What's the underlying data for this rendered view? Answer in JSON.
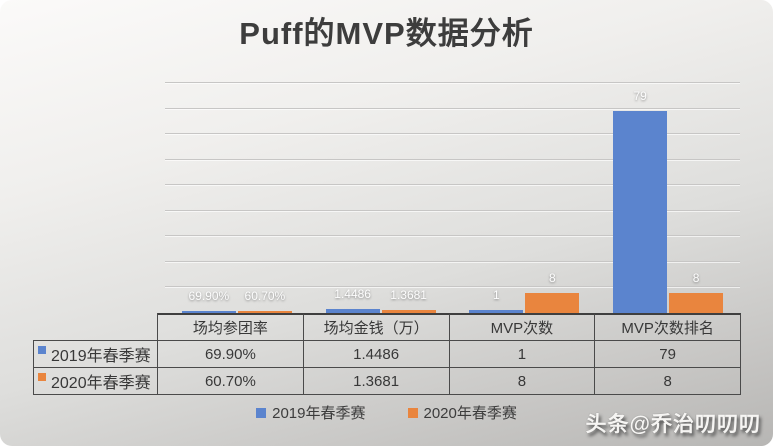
{
  "title": "Puff的MVP数据分析",
  "watermark": "头条@乔治叨叨叨",
  "colors": {
    "series_2019": "#5b84ce",
    "series_2020": "#e9853e",
    "table_border": "#4a4a4a",
    "title_text": "#3d3d3d",
    "background_top": "#fbfaf9",
    "background_bottom": "#b7b6b4"
  },
  "chart_data": {
    "type": "bar",
    "title": "Puff的MVP数据分析",
    "categories": [
      "场均参团率",
      "场均金钱（万）",
      "MVP次数",
      "MVP次数排名"
    ],
    "series": [
      {
        "name": "2019年春季赛",
        "color": "#5b84ce",
        "values": [
          0.699,
          1.4486,
          1,
          79
        ],
        "labels": [
          "69.90%",
          "1.4486",
          "1",
          "79"
        ]
      },
      {
        "name": "2020年春季赛",
        "color": "#e9853e",
        "values": [
          0.607,
          1.3681,
          8,
          8
        ],
        "labels": [
          "60.70%",
          "1.3681",
          "8",
          "8"
        ]
      }
    ],
    "xlabel": "",
    "ylabel": "",
    "ylim": [
      0,
      90
    ],
    "gridline_step": 10,
    "grid": true,
    "legend_position": "bottom",
    "shows_data_table": true
  },
  "table": {
    "headers": [
      "场均参团率",
      "场均金钱（万）",
      "MVP次数",
      "MVP次数排名"
    ],
    "rows": [
      {
        "label": "2019年春季赛",
        "color": "#5b84ce",
        "values": [
          "69.90%",
          "1.4486",
          "1",
          "79"
        ]
      },
      {
        "label": "2020年春季赛",
        "color": "#e9853e",
        "values": [
          "60.70%",
          "1.3681",
          "8",
          "8"
        ]
      }
    ]
  },
  "legend": {
    "items": [
      {
        "label": "2019年春季赛",
        "color": "#5b84ce"
      },
      {
        "label": "2020年春季赛",
        "color": "#e9853e"
      }
    ]
  }
}
